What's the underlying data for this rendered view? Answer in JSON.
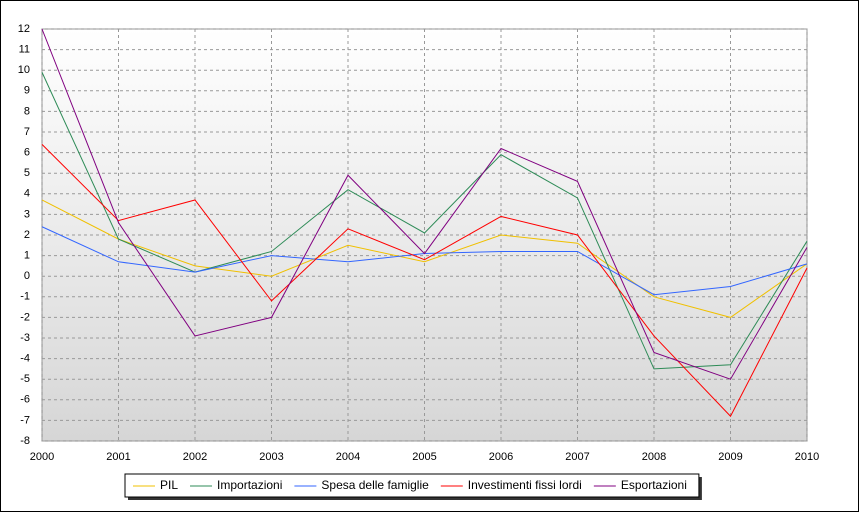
{
  "chart_data": {
    "type": "line",
    "x": [
      2000,
      2001,
      2002,
      2003,
      2004,
      2005,
      2006,
      2007,
      2008,
      2009,
      2010
    ],
    "xlim": [
      2000,
      2010
    ],
    "xticks": [
      2000,
      2001,
      2002,
      2003,
      2004,
      2005,
      2006,
      2007,
      2008,
      2009,
      2010
    ],
    "ylim": [
      -8,
      12
    ],
    "yticks": [
      -8,
      -7,
      -6,
      -5,
      -4,
      -3,
      -2,
      -1,
      0,
      1,
      2,
      3,
      4,
      5,
      6,
      7,
      8,
      9,
      10,
      11,
      12
    ],
    "grid": true,
    "legend": "bottom",
    "series": [
      {
        "name": "PIL",
        "color": "#f0c000",
        "values": [
          3.7,
          1.8,
          0.5,
          0.0,
          1.5,
          0.7,
          2.0,
          1.6,
          -1.0,
          -2.0,
          0.6
        ]
      },
      {
        "name": "Importazioni",
        "color": "#2e8b57",
        "values": [
          9.9,
          1.8,
          0.2,
          1.2,
          4.2,
          2.1,
          5.9,
          3.8,
          -4.5,
          -4.3,
          1.7
        ]
      },
      {
        "name": "Spesa delle famiglie",
        "color": "#3366ff",
        "values": [
          2.4,
          0.7,
          0.2,
          1.0,
          0.7,
          1.1,
          1.2,
          1.2,
          -0.9,
          -0.5,
          0.6
        ]
      },
      {
        "name": "Investimenti fissi lordi",
        "color": "#ff0000",
        "values": [
          6.4,
          2.7,
          3.7,
          -1.2,
          2.3,
          0.8,
          2.9,
          2.0,
          -2.9,
          -6.8,
          0.4
        ]
      },
      {
        "name": "Esportazioni",
        "color": "#800080",
        "values": [
          12.0,
          2.6,
          -2.9,
          -2.0,
          4.9,
          1.1,
          6.2,
          4.6,
          -3.7,
          -5.0,
          1.4
        ]
      }
    ]
  }
}
